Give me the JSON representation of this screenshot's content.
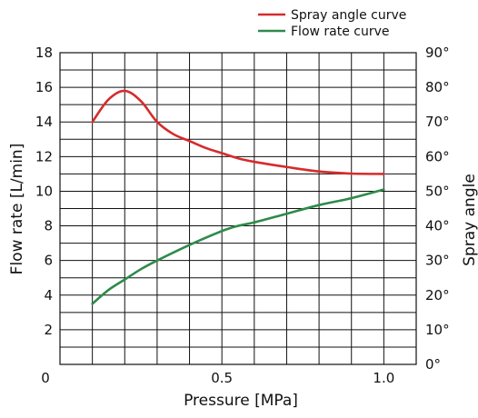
{
  "chart_data": {
    "type": "line",
    "title": "",
    "xlabel": "Pressure [MPa]",
    "ylabel_left": "Flow rate  [L/min]",
    "ylabel_right": "Spray angle",
    "x_ticks": [
      {
        "value": 0.5,
        "label": "0.5"
      },
      {
        "value": 1.0,
        "label": "1.0"
      }
    ],
    "x_origin_label": "0",
    "xlim": [
      0,
      1.1
    ],
    "ylim_left": [
      0,
      18
    ],
    "y_ticks_left": [
      {
        "value": 2,
        "label": "2"
      },
      {
        "value": 4,
        "label": "4"
      },
      {
        "value": 6,
        "label": "6"
      },
      {
        "value": 8,
        "label": "8"
      },
      {
        "value": 10,
        "label": "10"
      },
      {
        "value": 12,
        "label": "12"
      },
      {
        "value": 14,
        "label": "14"
      },
      {
        "value": 16,
        "label": "16"
      },
      {
        "value": 18,
        "label": "18"
      }
    ],
    "ylim_right": [
      0,
      90
    ],
    "y_ticks_right": [
      {
        "value": 0,
        "label": "0°"
      },
      {
        "value": 10,
        "label": "10°"
      },
      {
        "value": 20,
        "label": "20°"
      },
      {
        "value": 30,
        "label": "30°"
      },
      {
        "value": 40,
        "label": "40°"
      },
      {
        "value": 50,
        "label": "50°"
      },
      {
        "value": 60,
        "label": "60°"
      },
      {
        "value": 70,
        "label": "70°"
      },
      {
        "value": 80,
        "label": "80°"
      },
      {
        "value": 90,
        "label": "90°"
      }
    ],
    "x_grid_step": 0.1,
    "y_grid_step": 1,
    "grid": true,
    "legend_position": "top-right",
    "series": [
      {
        "name": "Spray angle curve",
        "axis": "right",
        "color": "#d62b2b",
        "x": [
          0.1,
          0.15,
          0.2,
          0.25,
          0.3,
          0.35,
          0.4,
          0.45,
          0.5,
          0.55,
          0.6,
          0.7,
          0.8,
          0.9,
          1.0
        ],
        "y": [
          70,
          76.5,
          79,
          76,
          70,
          66.5,
          64.5,
          62.5,
          61,
          59.5,
          58.5,
          57,
          55.7,
          55.1,
          55
        ]
      },
      {
        "name": "Flow rate curve",
        "axis": "left",
        "color": "#2e8b4a",
        "x": [
          0.1,
          0.15,
          0.2,
          0.25,
          0.3,
          0.4,
          0.5,
          0.55,
          0.6,
          0.7,
          0.8,
          0.9,
          1.0
        ],
        "y": [
          3.5,
          4.3,
          4.9,
          5.5,
          6.0,
          6.9,
          7.7,
          8.0,
          8.2,
          8.7,
          9.2,
          9.6,
          10.1
        ]
      }
    ]
  }
}
